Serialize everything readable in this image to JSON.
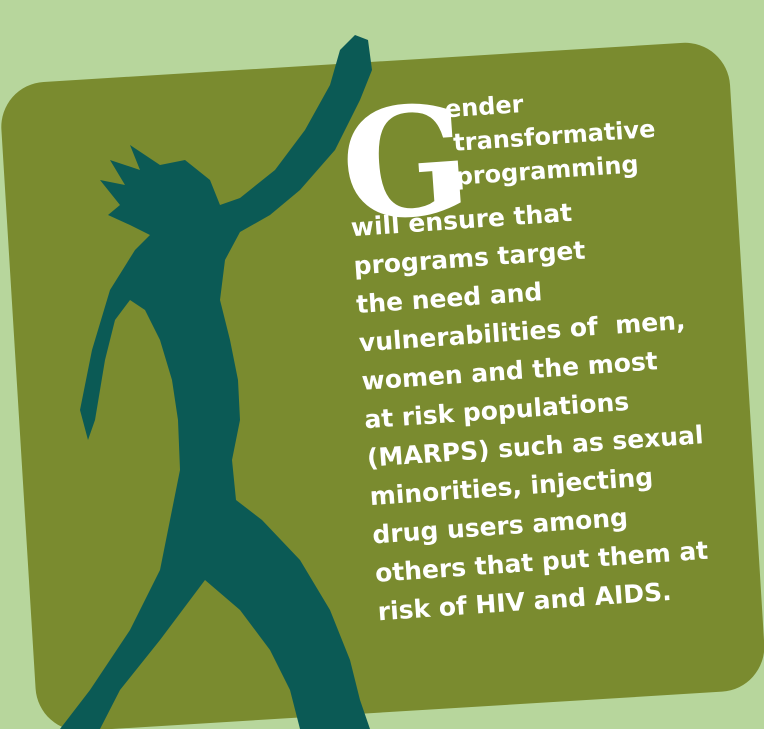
{
  "drop_cap": "G",
  "lead_lines": [
    "ender",
    "transformative",
    "programming"
  ],
  "body_lines": [
    "will ensure that",
    "programs target",
    "the need and",
    "vulnerabilities of  men,",
    "women and the most",
    "at risk populations",
    "(MARPS) such as sexual",
    "minorities, injecting",
    "drug users among",
    "others that put them at",
    "risk of HIV and AIDS."
  ]
}
